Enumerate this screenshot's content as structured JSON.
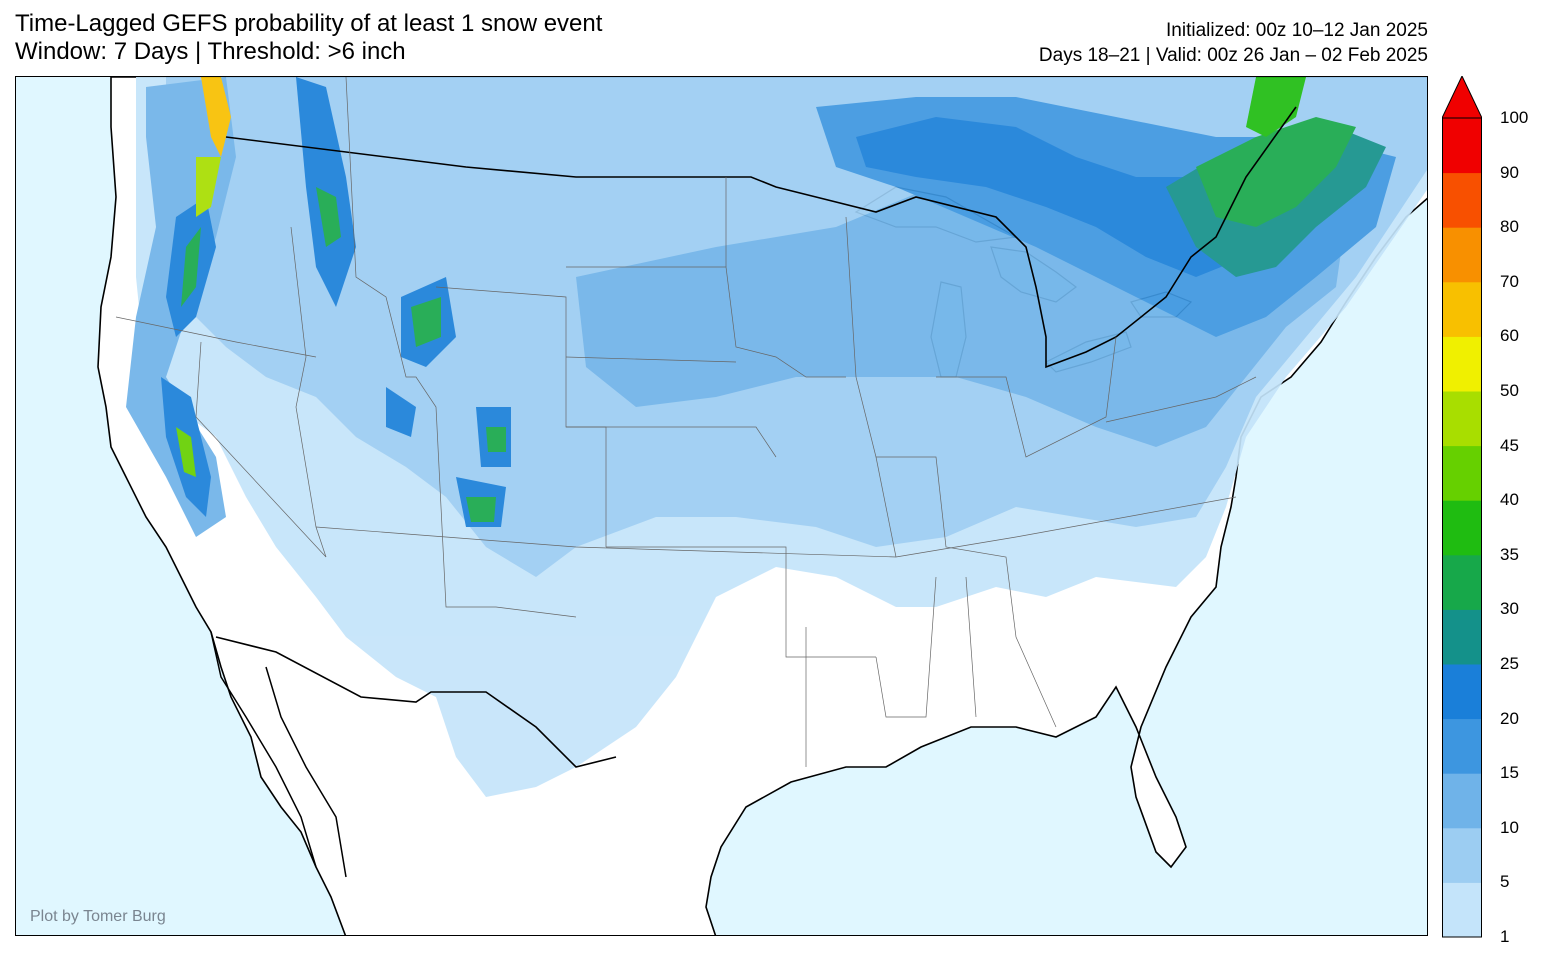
{
  "title": {
    "line1": "Time-Lagged GEFS probability of at least 1 snow event",
    "line2": "Window: 7 Days | Threshold: >6 inch"
  },
  "init": {
    "line1": "Initialized: 00z 10–12 Jan 2025",
    "line2": "Days 18–21 | Valid: 00z 26 Jan – 02 Feb 2025"
  },
  "credit": "Plot by Tomer Burg",
  "colorbar": {
    "ticks": [
      "1",
      "5",
      "10",
      "15",
      "20",
      "25",
      "30",
      "35",
      "40",
      "45",
      "50",
      "60",
      "70",
      "80",
      "90",
      "100"
    ],
    "colors": [
      "#c4e4fa",
      "#9ccdf2",
      "#6fb3e9",
      "#3d96e0",
      "#1a7fd9",
      "#14918a",
      "#17a84a",
      "#1fbc11",
      "#66d000",
      "#a8de00",
      "#f0f000",
      "#f8c000",
      "#f89000",
      "#f85000",
      "#f00000"
    ],
    "extend": "max"
  },
  "map": {
    "region": "CONUS",
    "ocean_color": "#e0f7ff",
    "land_color": "#ffffff"
  }
}
